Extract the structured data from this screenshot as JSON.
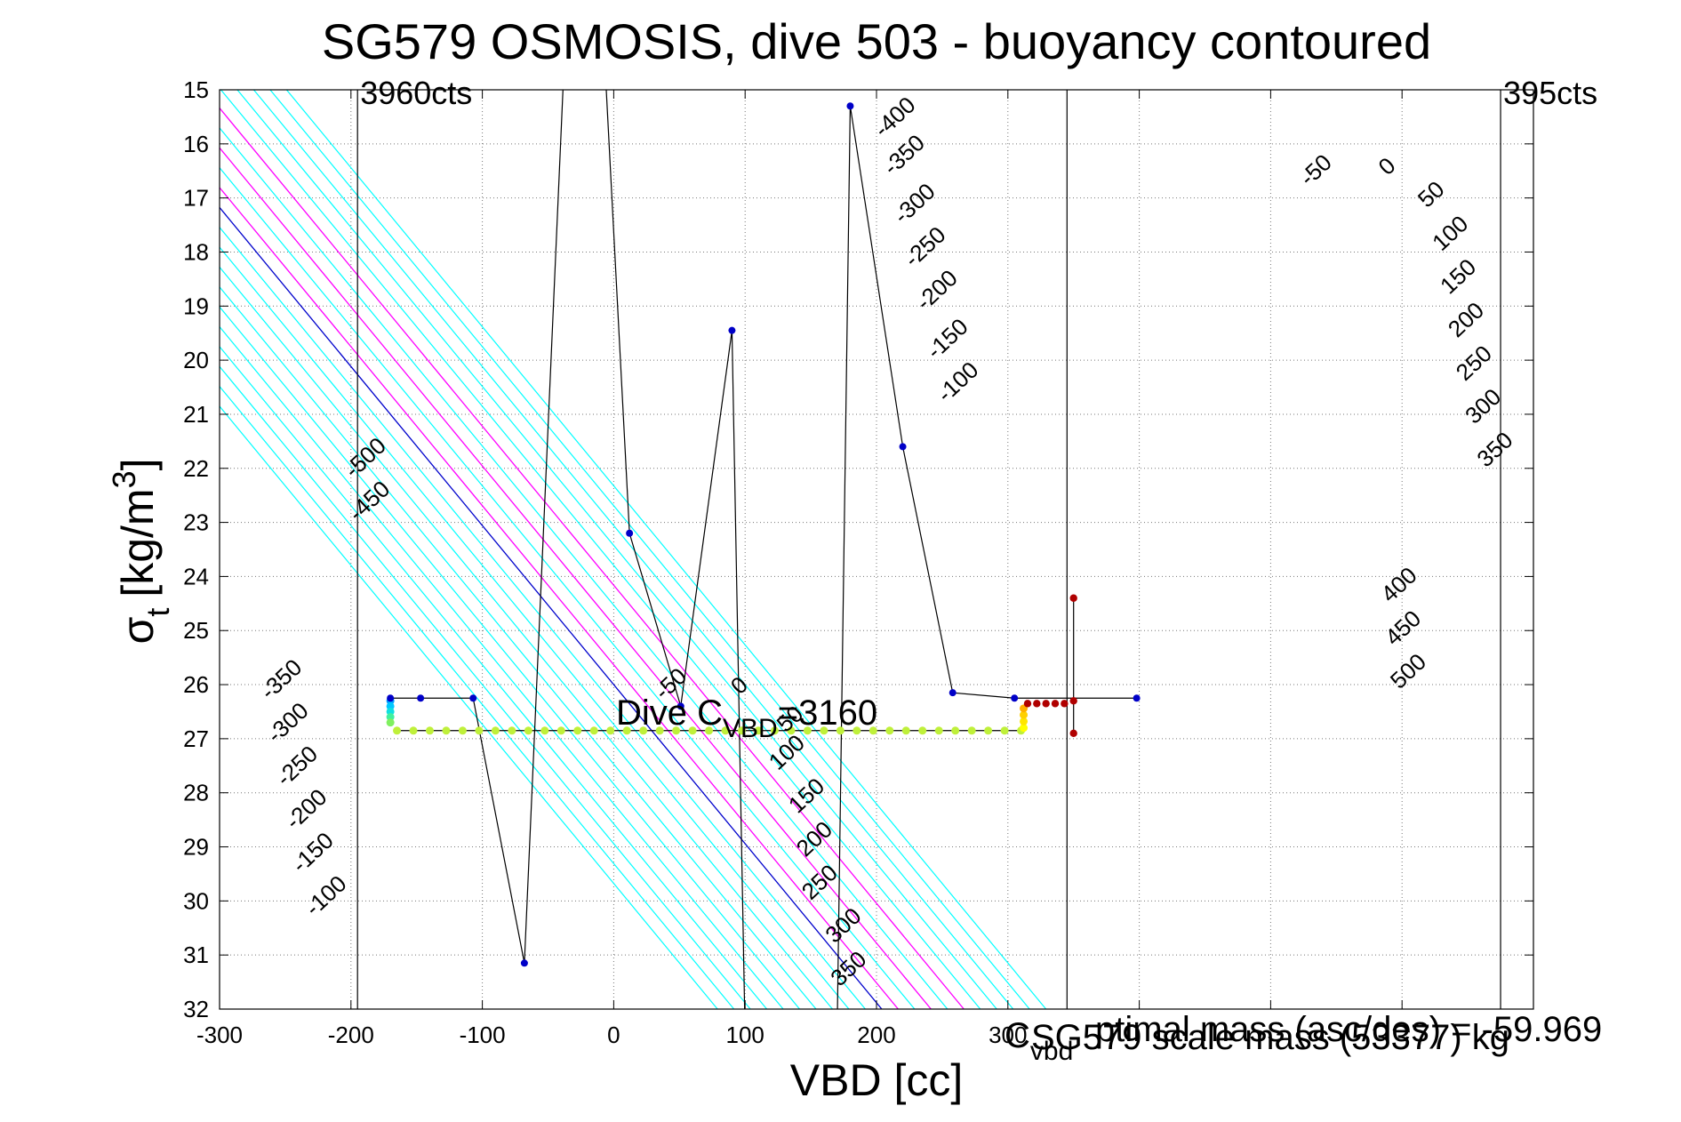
{
  "chart_data": {
    "type": "scatter",
    "title": "SG579 OSMOSIS, dive 503 - buoyancy contoured",
    "xlabel": "VBD [cc]",
    "ylabel_main": "σ",
    "ylabel_sub": "t",
    "ylabel_unit": "[kg/m",
    "ylabel_sup": "3",
    "ylabel_close": "]",
    "xlim": [
      -300,
      700
    ],
    "ylim": [
      15,
      32
    ],
    "y_reversed": true,
    "x_ticks": [
      -300,
      -200,
      -100,
      0,
      100,
      200,
      300,
      400,
      500,
      600,
      700
    ],
    "x_tick_labels": [
      "-300",
      "-200",
      "-100",
      "0",
      "100",
      "200",
      "300",
      "",
      "",
      "",
      ""
    ],
    "y_ticks": [
      15,
      16,
      17,
      18,
      19,
      20,
      21,
      22,
      23,
      24,
      25,
      26,
      27,
      28,
      29,
      30,
      31,
      32
    ],
    "grid": true,
    "vertical_lines": [
      {
        "x": -195,
        "label": "3960cts",
        "color": "#000000"
      },
      {
        "x": 345,
        "label": "",
        "color": "#000000"
      },
      {
        "x": 675,
        "label": "395cts",
        "color": "#000000"
      }
    ],
    "contour_slope": 34,
    "contour_colors": {
      "cyan": "#00ffff",
      "zero": "#0000cc",
      "magenta": "#ff00ff"
    },
    "contour_levels": [
      -500,
      -450,
      -400,
      -350,
      -300,
      -250,
      -200,
      -150,
      -100,
      -50,
      0,
      50,
      100,
      150,
      200,
      250,
      300,
      350,
      400,
      450,
      500
    ],
    "magenta_levels": [
      50,
      150,
      250
    ],
    "contour_labels": [
      {
        "text": "-500",
        "x": -198,
        "y": 22.2
      },
      {
        "text": "-450",
        "x": -195,
        "y": 23.0
      },
      {
        "text": "-400",
        "x": 205,
        "y": 15.9
      },
      {
        "text": "-350",
        "x": 212,
        "y": 16.6
      },
      {
        "text": "-300",
        "x": 220,
        "y": 17.5
      },
      {
        "text": "-250",
        "x": 228,
        "y": 18.3
      },
      {
        "text": "-200",
        "x": 237,
        "y": 19.1
      },
      {
        "text": "-150",
        "x": 245,
        "y": 20.0
      },
      {
        "text": "-100",
        "x": 253,
        "y": 20.8
      },
      {
        "text": "-50",
        "x": 529,
        "y": 16.8
      },
      {
        "text": "0",
        "x": 589,
        "y": 16.6
      },
      {
        "text": "50",
        "x": 619,
        "y": 17.2
      },
      {
        "text": "100",
        "x": 630,
        "y": 18.0
      },
      {
        "text": "150",
        "x": 636,
        "y": 18.8
      },
      {
        "text": "200",
        "x": 642,
        "y": 19.6
      },
      {
        "text": "250",
        "x": 648,
        "y": 20.4
      },
      {
        "text": "300",
        "x": 655,
        "y": 21.2
      },
      {
        "text": "350",
        "x": 664,
        "y": 22.0
      },
      {
        "text": "400",
        "x": 591,
        "y": 24.5
      },
      {
        "text": "450",
        "x": 594,
        "y": 25.3
      },
      {
        "text": "500",
        "x": 598,
        "y": 26.1
      },
      {
        "text": "-350",
        "x": -262,
        "y": 26.3
      },
      {
        "text": "-300",
        "x": -257,
        "y": 27.1
      },
      {
        "text": "-250",
        "x": -250,
        "y": 27.9
      },
      {
        "text": "-200",
        "x": -243,
        "y": 28.7
      },
      {
        "text": "-150",
        "x": -238,
        "y": 29.5
      },
      {
        "text": "-100",
        "x": -228,
        "y": 30.3
      },
      {
        "text": "-50",
        "x": 38,
        "y": 26.3
      },
      {
        "text": "0",
        "x": 96,
        "y": 26.2
      },
      {
        "text": "50",
        "x": 131,
        "y": 26.9
      },
      {
        "text": "100",
        "x": 125,
        "y": 27.6
      },
      {
        "text": "150",
        "x": 140,
        "y": 28.4
      },
      {
        "text": "200",
        "x": 146,
        "y": 29.2
      },
      {
        "text": "250",
        "x": 150,
        "y": 30.0
      },
      {
        "text": "300",
        "x": 168,
        "y": 30.8
      },
      {
        "text": "350",
        "x": 172,
        "y": 31.6
      }
    ],
    "profile_line": [
      [
        -170,
        26.25
      ],
      [
        -147,
        26.25
      ],
      [
        -107,
        26.25
      ],
      [
        -68,
        31.15
      ],
      [
        -35,
        13.0
      ],
      [
        -10,
        13.0
      ],
      [
        12,
        23.2
      ],
      [
        51,
        26.4
      ],
      [
        90,
        19.45
      ],
      [
        100,
        32.5
      ]
    ],
    "profile_line_2": [
      [
        170,
        32.5
      ],
      [
        180,
        15.3
      ],
      [
        220,
        21.6
      ],
      [
        258,
        26.15
      ],
      [
        305,
        26.25
      ],
      [
        345,
        26.25
      ],
      [
        398,
        26.25
      ]
    ],
    "vertical_segment": [
      [
        350,
        24.4
      ],
      [
        350,
        26.9
      ]
    ],
    "blue_points": [
      [
        -170,
        26.25
      ],
      [
        -147,
        26.25
      ],
      [
        -107,
        26.25
      ],
      [
        -68,
        31.15
      ],
      [
        12,
        23.2
      ],
      [
        51,
        26.4
      ],
      [
        90,
        19.45
      ],
      [
        180,
        15.3
      ],
      [
        220,
        21.6
      ],
      [
        258,
        26.15
      ],
      [
        305,
        26.25
      ],
      [
        398,
        26.25
      ]
    ],
    "colored_points": {
      "y": 26.85,
      "x_start": -165,
      "x_end": 310,
      "step": 12.5,
      "color": "#bff03a"
    },
    "red_points": [
      [
        315,
        26.35
      ],
      [
        322,
        26.35
      ],
      [
        329,
        26.35
      ],
      [
        336,
        26.35
      ],
      [
        343,
        26.35
      ],
      [
        350,
        26.3
      ],
      [
        350,
        24.4
      ],
      [
        350,
        26.9
      ]
    ],
    "annotation_dive": {
      "text_main": "Dive C",
      "text_sub": "VBD",
      "text_tail": "=3160"
    },
    "annotation_bottom_right": {
      "cvbd_main": "C",
      "cvbd_sub": "vbd",
      "overlap_text": "SG579 scale mass (53377) kg",
      "overlap_text_2": "ptimal mass (asc/des) = -59.969"
    }
  }
}
